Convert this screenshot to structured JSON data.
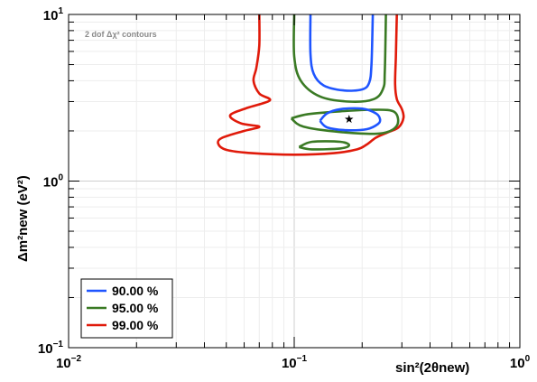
{
  "chart_data": {
    "type": "line",
    "annotation": "2 dof Δχ² contours",
    "x_axis": {
      "label": "sin²(2θnew)",
      "scale": "log",
      "range": [
        0.01,
        1
      ],
      "tick_labels": [
        {
          "value": 0.01,
          "base": "10",
          "exp": "−2"
        },
        {
          "value": 0.1,
          "base": "10",
          "exp": "−1"
        },
        {
          "value": 1,
          "base": "10",
          "exp": "0"
        }
      ]
    },
    "y_axis": {
      "label": "Δm²new (eV²)",
      "scale": "log",
      "range": [
        0.1,
        10
      ],
      "tick_labels": [
        {
          "value": 0.1,
          "base": "10",
          "exp": "−1"
        },
        {
          "value": 1,
          "base": "10",
          "exp": "0"
        },
        {
          "value": 10,
          "base": "10",
          "exp": "1"
        }
      ]
    },
    "grid": true,
    "legend_position": "bottom-left",
    "best_fit": {
      "x": 0.175,
      "y": 2.35
    },
    "series": [
      {
        "name": "90.00 %",
        "color": "#1f55ff",
        "contours": [
          [
            [
              0.118,
              10
            ],
            [
              0.118,
              5.8
            ],
            [
              0.122,
              4.4
            ],
            [
              0.135,
              3.75
            ],
            [
              0.165,
              3.5
            ],
            [
              0.2,
              3.55
            ],
            [
              0.215,
              3.9
            ],
            [
              0.22,
              5.0
            ],
            [
              0.223,
              10
            ]
          ],
          [
            [
              0.13,
              2.3
            ],
            [
              0.14,
              2.1
            ],
            [
              0.17,
              2.02
            ],
            [
              0.21,
              2.05
            ],
            [
              0.235,
              2.2
            ],
            [
              0.24,
              2.35
            ],
            [
              0.23,
              2.55
            ],
            [
              0.2,
              2.72
            ],
            [
              0.16,
              2.7
            ],
            [
              0.14,
              2.55
            ],
            [
              0.13,
              2.3
            ]
          ]
        ]
      },
      {
        "name": "95.00 %",
        "color": "#3a7a24",
        "contours": [
          [
            [
              0.1,
              10
            ],
            [
              0.1,
              5.6
            ],
            [
              0.107,
              4.0
            ],
            [
              0.13,
              3.22
            ],
            [
              0.175,
              3.0
            ],
            [
              0.225,
              3.1
            ],
            [
              0.248,
              3.6
            ],
            [
              0.252,
              4.6
            ],
            [
              0.255,
              10
            ]
          ],
          [
            [
              0.097,
              2.38
            ],
            [
              0.11,
              2.12
            ],
            [
              0.16,
              1.97
            ],
            [
              0.24,
              1.93
            ],
            [
              0.285,
              2.15
            ],
            [
              0.278,
              2.6
            ],
            [
              0.225,
              2.68
            ],
            [
              0.16,
              2.62
            ],
            [
              0.115,
              2.52
            ],
            [
              0.097,
              2.38
            ]
          ],
          [
            [
              0.105,
              1.6
            ],
            [
              0.12,
              1.55
            ],
            [
              0.16,
              1.57
            ],
            [
              0.175,
              1.64
            ],
            [
              0.16,
              1.72
            ],
            [
              0.12,
              1.72
            ],
            [
              0.105,
              1.6
            ]
          ]
        ]
      },
      {
        "name": "99.00 %",
        "color": "#e01a0a",
        "contours": [
          [
            [
              0.07,
              10
            ],
            [
              0.07,
              6.5
            ],
            [
              0.068,
              4.8
            ],
            [
              0.066,
              4.0
            ],
            [
              0.07,
              3.35
            ],
            [
              0.078,
              3.05
            ],
            [
              0.062,
              2.75
            ],
            [
              0.052,
              2.48
            ],
            [
              0.058,
              2.22
            ],
            [
              0.07,
              2.12
            ],
            [
              0.06,
              2.0
            ],
            [
              0.048,
              1.82
            ],
            [
              0.046,
              1.68
            ],
            [
              0.05,
              1.54
            ],
            [
              0.065,
              1.47
            ],
            [
              0.1,
              1.44
            ],
            [
              0.15,
              1.47
            ],
            [
              0.19,
              1.55
            ],
            [
              0.21,
              1.66
            ],
            [
              0.23,
              1.82
            ],
            [
              0.26,
              1.96
            ],
            [
              0.29,
              2.1
            ],
            [
              0.305,
              2.4
            ],
            [
              0.3,
              2.7
            ],
            [
              0.285,
              3.1
            ],
            [
              0.28,
              3.8
            ],
            [
              0.282,
              5.5
            ],
            [
              0.285,
              10
            ]
          ]
        ]
      }
    ]
  }
}
